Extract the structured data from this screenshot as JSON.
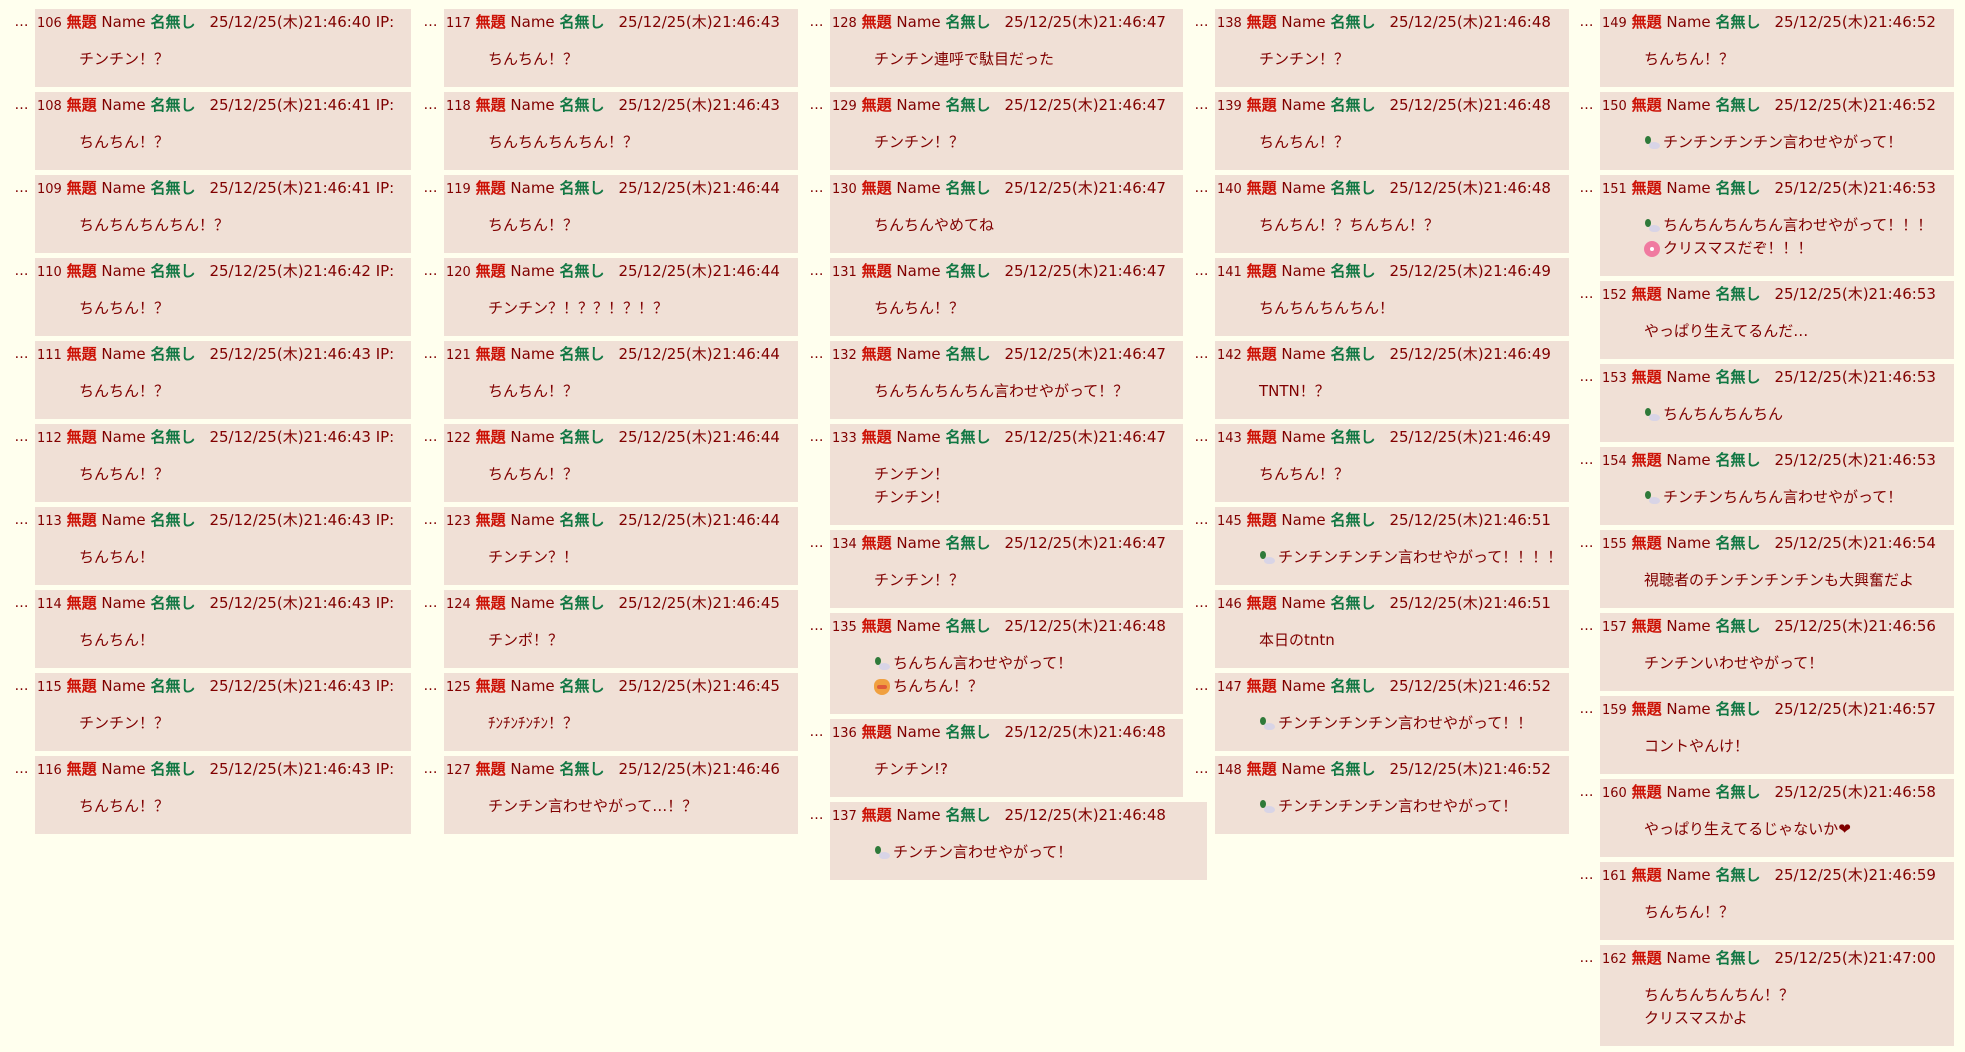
{
  "common": {
    "subject": "無題",
    "name_label": "Name",
    "name": "名無し",
    "dots": "…",
    "ip_label": "IP:"
  },
  "colors": {
    "background": "#ffffee",
    "post_bg": "#f0e0d6",
    "text": "#800000",
    "subject": "#cc1105",
    "name": "#117743"
  },
  "columns": [
    {
      "show_ip": true,
      "posts": [
        {
          "no": "106",
          "date": "25/12/25(木)21:46:40",
          "lines": [
            {
              "text": "チンチン！？"
            }
          ]
        },
        {
          "no": "108",
          "date": "25/12/25(木)21:46:41",
          "lines": [
            {
              "text": "ちんちん！？"
            }
          ]
        },
        {
          "no": "109",
          "date": "25/12/25(木)21:46:41",
          "lines": [
            {
              "text": "ちんちんちんちん！？"
            }
          ]
        },
        {
          "no": "110",
          "date": "25/12/25(木)21:46:42",
          "lines": [
            {
              "text": "ちんちん！？"
            }
          ]
        },
        {
          "no": "111",
          "date": "25/12/25(木)21:46:43",
          "lines": [
            {
              "text": "ちんちん！？"
            }
          ]
        },
        {
          "no": "112",
          "date": "25/12/25(木)21:46:43",
          "lines": [
            {
              "text": "ちんちん！？"
            }
          ]
        },
        {
          "no": "113",
          "date": "25/12/25(木)21:46:43",
          "lines": [
            {
              "text": "ちんちん！"
            }
          ]
        },
        {
          "no": "114",
          "date": "25/12/25(木)21:46:43",
          "lines": [
            {
              "text": "ちんちん！"
            }
          ]
        },
        {
          "no": "115",
          "date": "25/12/25(木)21:46:43",
          "lines": [
            {
              "text": "チンチン！？"
            }
          ]
        },
        {
          "no": "116",
          "date": "25/12/25(木)21:46:43",
          "lines": [
            {
              "text": "ちんちん！？"
            }
          ]
        }
      ]
    },
    {
      "posts": [
        {
          "no": "117",
          "date": "25/12/25(木)21:46:43",
          "lines": [
            {
              "text": "ちんちん！？"
            }
          ]
        },
        {
          "no": "118",
          "date": "25/12/25(木)21:46:43",
          "lines": [
            {
              "text": "ちんちんちんちん！？"
            }
          ]
        },
        {
          "no": "119",
          "date": "25/12/25(木)21:46:44",
          "lines": [
            {
              "text": "ちんちん！？"
            }
          ]
        },
        {
          "no": "120",
          "date": "25/12/25(木)21:46:44",
          "lines": [
            {
              "text": "チンチン？！？？！？！？"
            }
          ]
        },
        {
          "no": "121",
          "date": "25/12/25(木)21:46:44",
          "lines": [
            {
              "text": "ちんちん！？"
            }
          ]
        },
        {
          "no": "122",
          "date": "25/12/25(木)21:46:44",
          "lines": [
            {
              "text": "ちんちん！？"
            }
          ]
        },
        {
          "no": "123",
          "date": "25/12/25(木)21:46:44",
          "lines": [
            {
              "text": "チンチン？！"
            }
          ]
        },
        {
          "no": "124",
          "date": "25/12/25(木)21:46:45",
          "lines": [
            {
              "text": "チンポ！？"
            }
          ]
        },
        {
          "no": "125",
          "date": "25/12/25(木)21:46:45",
          "lines": [
            {
              "text": "ﾁﾝﾁﾝﾁﾝﾁﾝ！？"
            }
          ]
        },
        {
          "no": "127",
          "date": "25/12/25(木)21:46:46",
          "lines": [
            {
              "text": "チンチン言わせやがって…！？"
            }
          ]
        }
      ]
    },
    {
      "posts": [
        {
          "no": "128",
          "date": "25/12/25(木)21:46:47",
          "lines": [
            {
              "text": "チンチン連呼で駄目だった"
            }
          ]
        },
        {
          "no": "129",
          "date": "25/12/25(木)21:46:47",
          "lines": [
            {
              "text": "チンチン！？"
            }
          ]
        },
        {
          "no": "130",
          "date": "25/12/25(木)21:46:47",
          "lines": [
            {
              "text": "ちんちんやめてね"
            }
          ]
        },
        {
          "no": "131",
          "date": "25/12/25(木)21:46:47",
          "lines": [
            {
              "text": "ちんちん！？"
            }
          ]
        },
        {
          "no": "132",
          "date": "25/12/25(木)21:46:47",
          "lines": [
            {
              "text": "ちんちんちんちん言わせやがって！？"
            }
          ]
        },
        {
          "no": "133",
          "date": "25/12/25(木)21:46:47",
          "lines": [
            {
              "text": "チンチン！"
            },
            {
              "text": "チンチン！"
            }
          ]
        },
        {
          "no": "134",
          "date": "25/12/25(木)21:46:47",
          "lines": [
            {
              "text": "チンチン！？"
            }
          ]
        },
        {
          "no": "135",
          "date": "25/12/25(木)21:46:48",
          "lines": [
            {
              "icon": "duck",
              "text": "ちんちん言わせやがって！"
            },
            {
              "icon": "cat",
              "text": "ちんちん！？"
            }
          ]
        },
        {
          "no": "136",
          "date": "25/12/25(木)21:46:48",
          "lines": [
            {
              "text": "チンチン!?"
            }
          ]
        },
        {
          "no": "137",
          "date": "25/12/25(木)21:46:48",
          "lines": [
            {
              "icon": "duck",
              "text": "チンチン言わせやがって！"
            }
          ]
        }
      ]
    },
    {
      "posts": [
        {
          "no": "138",
          "date": "25/12/25(木)21:46:48",
          "lines": [
            {
              "text": "チンチン！？"
            }
          ]
        },
        {
          "no": "139",
          "date": "25/12/25(木)21:46:48",
          "lines": [
            {
              "text": "ちんちん！？"
            }
          ]
        },
        {
          "no": "140",
          "date": "25/12/25(木)21:46:48",
          "lines": [
            {
              "text": "ちんちん！？ちんちん！？"
            }
          ]
        },
        {
          "no": "141",
          "date": "25/12/25(木)21:46:49",
          "lines": [
            {
              "text": "ちんちんちんちん！"
            }
          ]
        },
        {
          "no": "142",
          "date": "25/12/25(木)21:46:49",
          "lines": [
            {
              "text": "TNTN！？"
            }
          ]
        },
        {
          "no": "143",
          "date": "25/12/25(木)21:46:49",
          "lines": [
            {
              "text": "ちんちん！？"
            }
          ]
        },
        {
          "no": "145",
          "date": "25/12/25(木)21:46:51",
          "lines": [
            {
              "icon": "duck",
              "text": "チンチンチンチン言わせやがって！！！！"
            }
          ]
        },
        {
          "no": "146",
          "date": "25/12/25(木)21:46:51",
          "lines": [
            {
              "text": "本日のtntn"
            }
          ]
        },
        {
          "no": "147",
          "date": "25/12/25(木)21:46:52",
          "lines": [
            {
              "icon": "duck",
              "text": "チンチンチンチン言わせやがって！！"
            }
          ]
        },
        {
          "no": "148",
          "date": "25/12/25(木)21:46:52",
          "lines": [
            {
              "icon": "duck",
              "text": "チンチンチンチン言わせやがって！"
            }
          ]
        }
      ]
    },
    {
      "posts": [
        {
          "no": "149",
          "date": "25/12/25(木)21:46:52",
          "lines": [
            {
              "text": "ちんちん！？"
            }
          ]
        },
        {
          "no": "150",
          "date": "25/12/25(木)21:46:52",
          "lines": [
            {
              "icon": "duck",
              "text": "チンチンチンチン言わせやがって！"
            }
          ]
        },
        {
          "no": "151",
          "date": "25/12/25(木)21:46:53",
          "lines": [
            {
              "icon": "duck",
              "text": "ちんちんちんちん言わせやがって！！！"
            },
            {
              "icon": "flower",
              "text": "クリスマスだぞ！！！"
            }
          ]
        },
        {
          "no": "152",
          "date": "25/12/25(木)21:46:53",
          "lines": [
            {
              "text": "やっぱり生えてるんだ…"
            }
          ]
        },
        {
          "no": "153",
          "date": "25/12/25(木)21:46:53",
          "lines": [
            {
              "icon": "duck",
              "text": "ちんちんちんちん"
            }
          ]
        },
        {
          "no": "154",
          "date": "25/12/25(木)21:46:53",
          "lines": [
            {
              "icon": "duck",
              "text": "チンチンちんちん言わせやがって！"
            }
          ]
        },
        {
          "no": "155",
          "date": "25/12/25(木)21:46:54",
          "lines": [
            {
              "text": "視聴者のチンチンチンチンも大興奮だよ"
            }
          ]
        },
        {
          "no": "157",
          "date": "25/12/25(木)21:46:56",
          "lines": [
            {
              "text": "チンチンいわせやがって！"
            }
          ]
        },
        {
          "no": "159",
          "date": "25/12/25(木)21:46:57",
          "lines": [
            {
              "text": "コントやんけ！"
            }
          ]
        },
        {
          "no": "160",
          "date": "25/12/25(木)21:46:58",
          "lines": [
            {
              "text": "やっぱり生えてるじゃないか❤"
            }
          ]
        },
        {
          "no": "161",
          "date": "25/12/25(木)21:46:59",
          "lines": [
            {
              "text": "ちんちん！？"
            }
          ]
        },
        {
          "no": "162",
          "date": "25/12/25(木)21:47:00",
          "lines": [
            {
              "text": "ちんちんちんちん！？"
            },
            {
              "text": "クリスマスかよ"
            }
          ]
        }
      ]
    }
  ]
}
